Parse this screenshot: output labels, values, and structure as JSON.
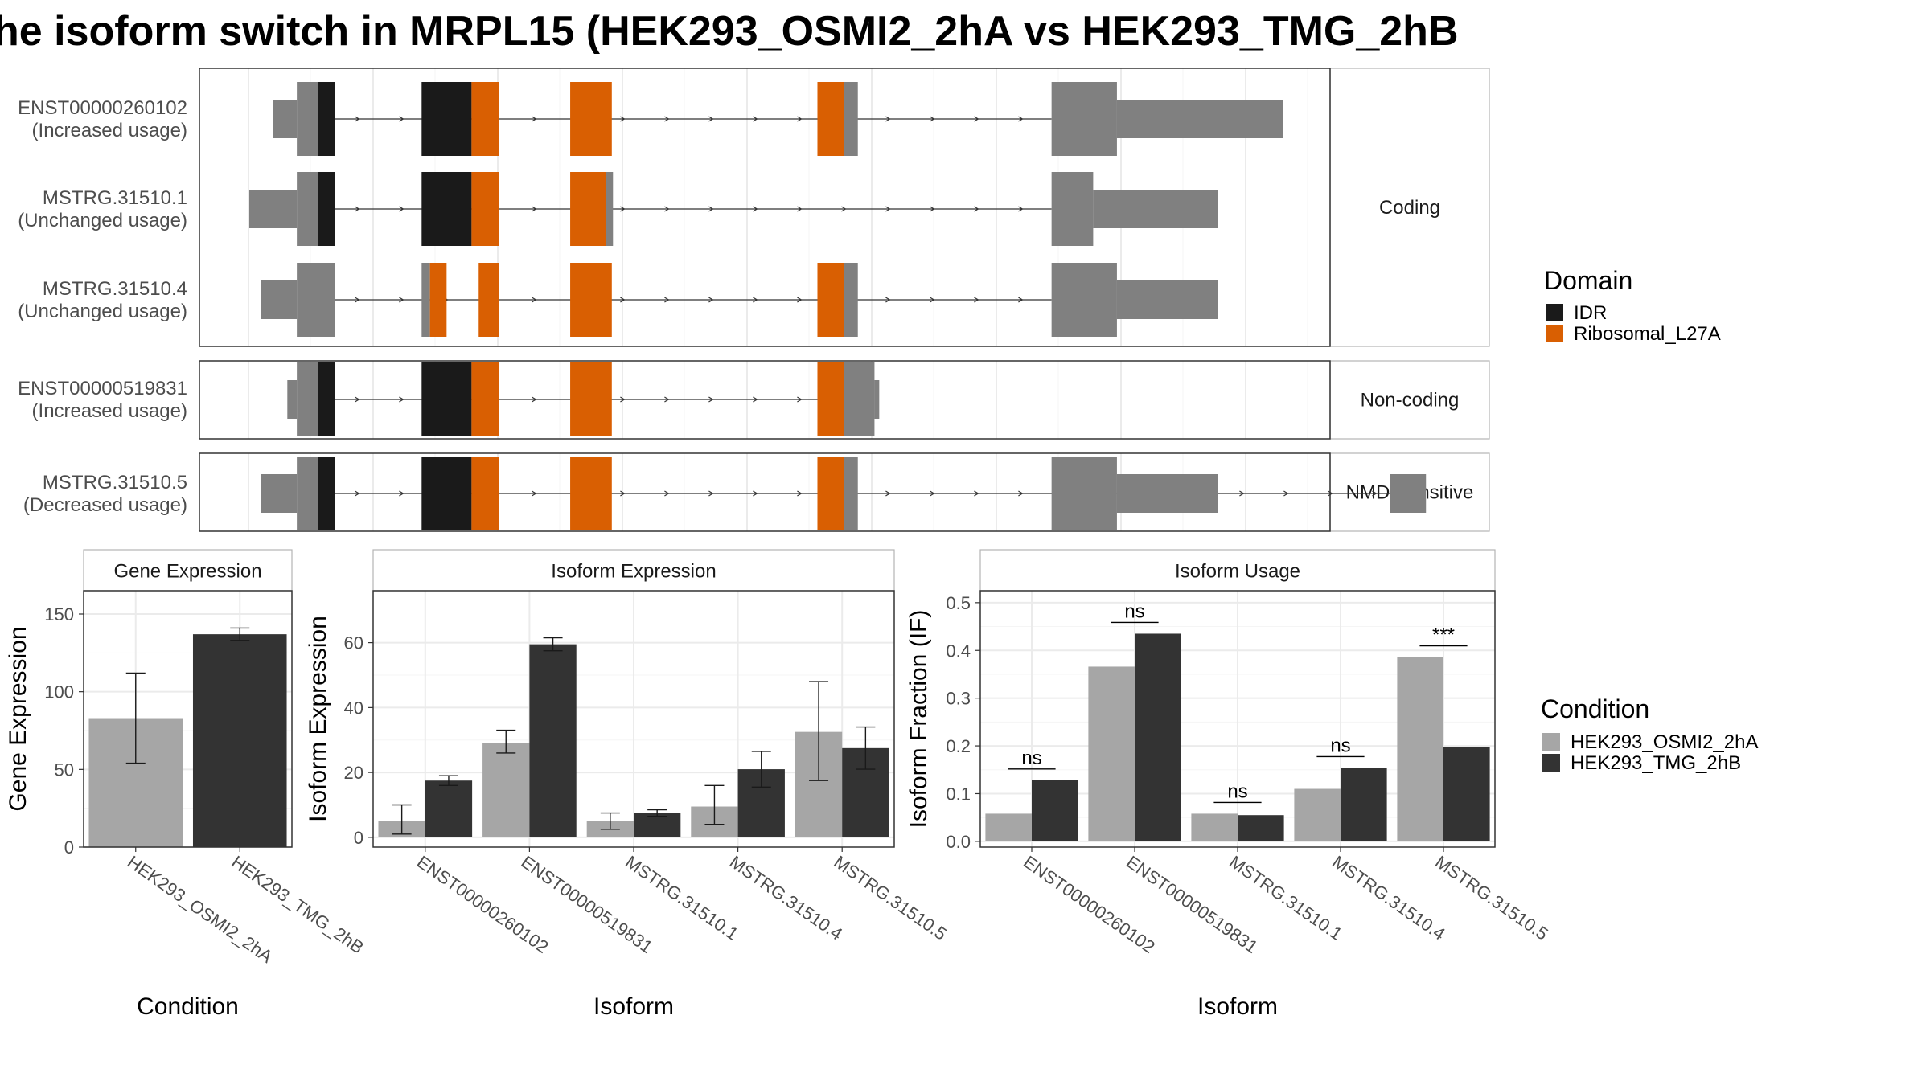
{
  "title": "he isoform switch in MRPL15 (HEK293_OSMI2_2hA vs HEK293_TMG_2hB",
  "colors": {
    "idr": "#1a1a1a",
    "ribosomal": "#d95f02",
    "utr": "#808080",
    "cond_a": "#a6a6a6",
    "cond_b": "#333333"
  },
  "structure": {
    "groups": [
      {
        "label": "Coding",
        "transcripts": [
          {
            "id": "ENST00000260102",
            "usage": "(Increased usage)",
            "features": [
              {
                "s": 0.02,
                "e": 0.04,
                "kind": "utr",
                "h": "thin"
              },
              {
                "s": 0.04,
                "e": 0.058,
                "kind": "utr",
                "h": "thick"
              },
              {
                "s": 0.058,
                "e": 0.072,
                "kind": "idr",
                "h": "thick"
              },
              {
                "s": 0.145,
                "e": 0.187,
                "kind": "idr",
                "h": "thick"
              },
              {
                "s": 0.187,
                "e": 0.21,
                "kind": "ribosomal",
                "h": "thick"
              },
              {
                "s": 0.27,
                "e": 0.305,
                "kind": "ribosomal",
                "h": "thick"
              },
              {
                "s": 0.478,
                "e": 0.5,
                "kind": "ribosomal",
                "h": "thick"
              },
              {
                "s": 0.5,
                "e": 0.512,
                "kind": "utr",
                "h": "thick"
              },
              {
                "s": 0.675,
                "e": 0.73,
                "kind": "utr",
                "h": "thick"
              },
              {
                "s": 0.73,
                "e": 0.87,
                "kind": "utr",
                "h": "thin"
              }
            ],
            "span": [
              0.072,
              0.675
            ]
          },
          {
            "id": "MSTRG.31510.1",
            "usage": "(Unchanged usage)",
            "features": [
              {
                "s": 0.0,
                "e": 0.04,
                "kind": "utr",
                "h": "thin"
              },
              {
                "s": 0.04,
                "e": 0.058,
                "kind": "utr",
                "h": "thick"
              },
              {
                "s": 0.058,
                "e": 0.072,
                "kind": "idr",
                "h": "thick"
              },
              {
                "s": 0.145,
                "e": 0.187,
                "kind": "idr",
                "h": "thick"
              },
              {
                "s": 0.187,
                "e": 0.21,
                "kind": "ribosomal",
                "h": "thick"
              },
              {
                "s": 0.27,
                "e": 0.3,
                "kind": "ribosomal",
                "h": "thick"
              },
              {
                "s": 0.3,
                "e": 0.306,
                "kind": "utr",
                "h": "thick"
              },
              {
                "s": 0.675,
                "e": 0.71,
                "kind": "utr",
                "h": "thick"
              },
              {
                "s": 0.71,
                "e": 0.815,
                "kind": "utr",
                "h": "thin"
              }
            ],
            "span": [
              0.072,
              0.675
            ]
          },
          {
            "id": "MSTRG.31510.4",
            "usage": "(Unchanged usage)",
            "features": [
              {
                "s": 0.01,
                "e": 0.04,
                "kind": "utr",
                "h": "thin"
              },
              {
                "s": 0.04,
                "e": 0.072,
                "kind": "utr",
                "h": "thick"
              },
              {
                "s": 0.145,
                "e": 0.152,
                "kind": "utr",
                "h": "thick"
              },
              {
                "s": 0.152,
                "e": 0.166,
                "kind": "ribosomal",
                "h": "thick"
              },
              {
                "s": 0.193,
                "e": 0.21,
                "kind": "ribosomal",
                "h": "thick"
              },
              {
                "s": 0.27,
                "e": 0.305,
                "kind": "ribosomal",
                "h": "thick"
              },
              {
                "s": 0.478,
                "e": 0.5,
                "kind": "ribosomal",
                "h": "thick"
              },
              {
                "s": 0.5,
                "e": 0.512,
                "kind": "utr",
                "h": "thick"
              },
              {
                "s": 0.675,
                "e": 0.73,
                "kind": "utr",
                "h": "thick"
              },
              {
                "s": 0.73,
                "e": 0.815,
                "kind": "utr",
                "h": "thin"
              }
            ],
            "span": [
              0.072,
              0.675
            ]
          }
        ]
      },
      {
        "label": "Non-coding",
        "transcripts": [
          {
            "id": "ENST00000519831",
            "usage": "(Increased usage)",
            "features": [
              {
                "s": 0.032,
                "e": 0.04,
                "kind": "utr",
                "h": "thin"
              },
              {
                "s": 0.04,
                "e": 0.058,
                "kind": "utr",
                "h": "thick"
              },
              {
                "s": 0.058,
                "e": 0.072,
                "kind": "idr",
                "h": "thick"
              },
              {
                "s": 0.145,
                "e": 0.187,
                "kind": "idr",
                "h": "thick"
              },
              {
                "s": 0.187,
                "e": 0.21,
                "kind": "ribosomal",
                "h": "thick"
              },
              {
                "s": 0.27,
                "e": 0.305,
                "kind": "ribosomal",
                "h": "thick"
              },
              {
                "s": 0.478,
                "e": 0.5,
                "kind": "ribosomal",
                "h": "thick"
              },
              {
                "s": 0.5,
                "e": 0.526,
                "kind": "utr",
                "h": "thick"
              },
              {
                "s": 0.526,
                "e": 0.53,
                "kind": "utr",
                "h": "thin"
              }
            ],
            "span": [
              0.072,
              0.478
            ]
          }
        ]
      },
      {
        "label": "NMD Sensitive",
        "transcripts": [
          {
            "id": "MSTRG.31510.5",
            "usage": "(Decreased usage)",
            "features": [
              {
                "s": 0.01,
                "e": 0.04,
                "kind": "utr",
                "h": "thin"
              },
              {
                "s": 0.04,
                "e": 0.058,
                "kind": "utr",
                "h": "thick"
              },
              {
                "s": 0.058,
                "e": 0.072,
                "kind": "idr",
                "h": "thick"
              },
              {
                "s": 0.145,
                "e": 0.187,
                "kind": "idr",
                "h": "thick"
              },
              {
                "s": 0.187,
                "e": 0.21,
                "kind": "ribosomal",
                "h": "thick"
              },
              {
                "s": 0.27,
                "e": 0.305,
                "kind": "ribosomal",
                "h": "thick"
              },
              {
                "s": 0.478,
                "e": 0.5,
                "kind": "ribosomal",
                "h": "thick"
              },
              {
                "s": 0.5,
                "e": 0.512,
                "kind": "utr",
                "h": "thick"
              },
              {
                "s": 0.675,
                "e": 0.73,
                "kind": "utr",
                "h": "thick"
              },
              {
                "s": 0.73,
                "e": 0.815,
                "kind": "utr",
                "h": "thin"
              },
              {
                "s": 0.96,
                "e": 0.99,
                "kind": "utr",
                "h": "thin"
              }
            ],
            "span": [
              0.072,
              0.96
            ]
          }
        ]
      }
    ]
  },
  "legend_domain": {
    "title": "Domain",
    "items": [
      {
        "label": "IDR",
        "color": "#1a1a1a"
      },
      {
        "label": "Ribosomal_L27A",
        "color": "#d95f02"
      }
    ]
  },
  "legend_condition": {
    "title": "Condition",
    "items": [
      {
        "label": "HEK293_OSMI2_2hA",
        "color": "#a6a6a6"
      },
      {
        "label": "HEK293_TMG_2hB",
        "color": "#333333"
      }
    ]
  },
  "chart_data": [
    {
      "type": "bar",
      "title": "Gene Expression",
      "xlabel": "Condition",
      "ylabel": "Gene Expression",
      "categories": [
        "HEK293_OSMI2_2hA",
        "HEK293_TMG_2hB"
      ],
      "values": [
        83,
        137
      ],
      "errors": [
        [
          54,
          112
        ],
        [
          133,
          141
        ]
      ],
      "ylim": [
        0,
        165
      ],
      "yticks": [
        0,
        50,
        100,
        150
      ]
    },
    {
      "type": "bar",
      "title": "Isoform Expression",
      "xlabel": "Isoform",
      "ylabel": "Isoform Expression",
      "categories": [
        "ENST00000260102",
        "ENST00000519831",
        "MSTRG.31510.1",
        "MSTRG.31510.4",
        "MSTRG.31510.5"
      ],
      "series": [
        {
          "name": "HEK293_OSMI2_2hA",
          "values": [
            5,
            29,
            5,
            9.5,
            32.5
          ],
          "errors": [
            [
              1,
              10
            ],
            [
              26,
              33
            ],
            [
              2.5,
              7.5
            ],
            [
              4,
              16
            ],
            [
              17.5,
              48
            ]
          ]
        },
        {
          "name": "HEK293_TMG_2hB",
          "values": [
            17.5,
            59.5,
            7.5,
            21,
            27.5
          ],
          "errors": [
            [
              16,
              19
            ],
            [
              57.5,
              61.5
            ],
            [
              6.5,
              8.5
            ],
            [
              15.5,
              26.5
            ],
            [
              21,
              34
            ]
          ]
        }
      ],
      "ylim": [
        -3,
        76
      ],
      "yticks": [
        0,
        20,
        40,
        60
      ]
    },
    {
      "type": "bar",
      "title": "Isoform Usage",
      "xlabel": "Isoform",
      "ylabel": "Isoform Fraction (IF)",
      "categories": [
        "ENST00000260102",
        "ENST00000519831",
        "MSTRG.31510.1",
        "MSTRG.31510.4",
        "MSTRG.31510.5"
      ],
      "series": [
        {
          "name": "HEK293_OSMI2_2hA",
          "values": [
            0.058,
            0.366,
            0.058,
            0.11,
            0.386
          ]
        },
        {
          "name": "HEK293_TMG_2hB",
          "values": [
            0.128,
            0.435,
            0.055,
            0.154,
            0.198
          ]
        }
      ],
      "significance": [
        "ns",
        "ns",
        "ns",
        "ns",
        "***"
      ],
      "ylim": [
        -0.012,
        0.525
      ],
      "yticks": [
        0.0,
        0.1,
        0.2,
        0.3,
        0.4,
        0.5
      ]
    }
  ]
}
